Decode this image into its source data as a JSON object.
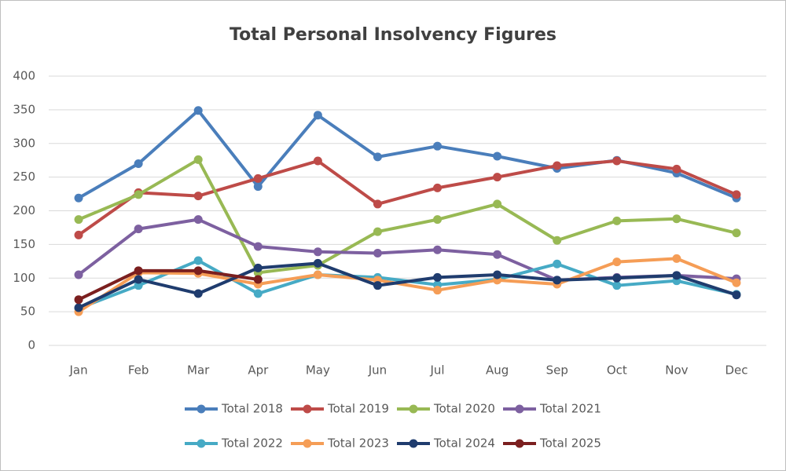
{
  "chart_data": {
    "type": "line",
    "title": "Total Personal Insolvency Figures",
    "categories": [
      "Jan",
      "Feb",
      "Mar",
      "Apr",
      "May",
      "Jun",
      "Jul",
      "Aug",
      "Sep",
      "Oct",
      "Nov",
      "Dec"
    ],
    "series": [
      {
        "name": "Total 2018",
        "color": "#4a7ebb",
        "values": [
          219,
          270,
          349,
          236,
          342,
          280,
          296,
          281,
          263,
          275,
          256,
          219
        ]
      },
      {
        "name": "Total 2019",
        "color": "#be4b48",
        "values": [
          164,
          227,
          222,
          248,
          274,
          210,
          234,
          250,
          267,
          274,
          262,
          224
        ]
      },
      {
        "name": "Total 2020",
        "color": "#98b954",
        "values": [
          187,
          224,
          276,
          108,
          119,
          169,
          187,
          210,
          156,
          185,
          188,
          167
        ]
      },
      {
        "name": "Total 2021",
        "color": "#7d60a0",
        "values": [
          105,
          173,
          187,
          147,
          139,
          137,
          142,
          135,
          97,
          101,
          104,
          99
        ]
      },
      {
        "name": "Total 2022",
        "color": "#46aac5",
        "values": [
          55,
          89,
          126,
          77,
          105,
          101,
          90,
          98,
          121,
          89,
          96,
          76
        ]
      },
      {
        "name": "Total 2023",
        "color": "#f59d56",
        "values": [
          50,
          108,
          107,
          91,
          105,
          97,
          82,
          97,
          91,
          124,
          129,
          93
        ]
      },
      {
        "name": "Total 2024",
        "color": "#1f3c6e",
        "values": [
          56,
          98,
          77,
          115,
          122,
          89,
          101,
          105,
          97,
          100,
          104,
          75
        ]
      },
      {
        "name": "Total 2025",
        "color": "#7b1f1f",
        "values": [
          68,
          111,
          111,
          98,
          null,
          null,
          null,
          null,
          null,
          null,
          null,
          null
        ]
      }
    ],
    "ylim": [
      0,
      400
    ],
    "yticks": [
      0,
      50,
      100,
      150,
      200,
      250,
      300,
      350,
      400
    ],
    "grid": true,
    "legend": "bottom"
  }
}
